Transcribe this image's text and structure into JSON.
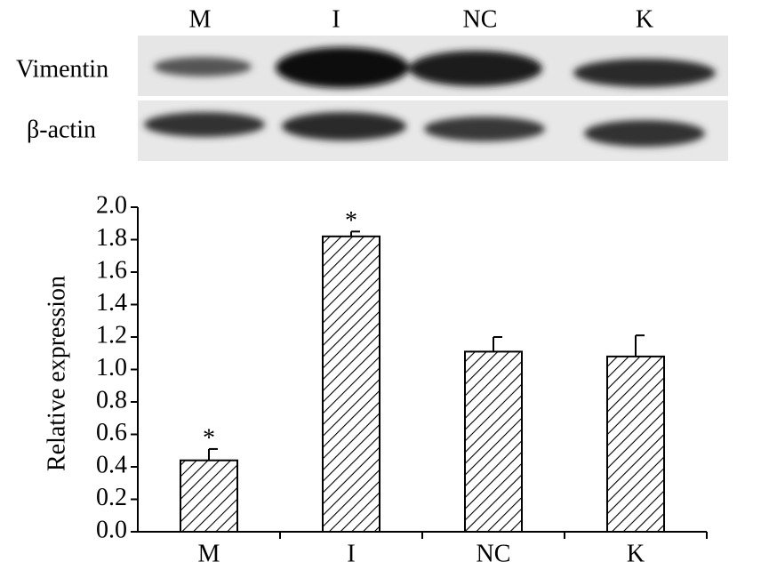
{
  "blot": {
    "lanes": [
      "M",
      "I",
      "NC",
      "K"
    ],
    "rows": [
      "Vimentin",
      "β-actin"
    ]
  },
  "chart_data": {
    "type": "bar",
    "y_label": "Relative expression",
    "categories": [
      "M",
      "I",
      "NC",
      "K"
    ],
    "values": [
      0.44,
      1.82,
      1.11,
      1.08
    ],
    "errors": [
      0.07,
      0.03,
      0.09,
      0.13
    ],
    "markers": [
      "*",
      "*",
      null,
      null
    ],
    "color": "#000000",
    "ylim": [
      0,
      2
    ],
    "yticks": [
      {
        "value": 0,
        "label": "0.0"
      },
      0.2,
      0.4,
      0.6,
      0.8,
      {
        "value": 1,
        "label": "1.0"
      },
      1.2,
      1.4,
      1.6,
      1.8,
      {
        "value": 2,
        "label": "2.0"
      }
    ]
  }
}
